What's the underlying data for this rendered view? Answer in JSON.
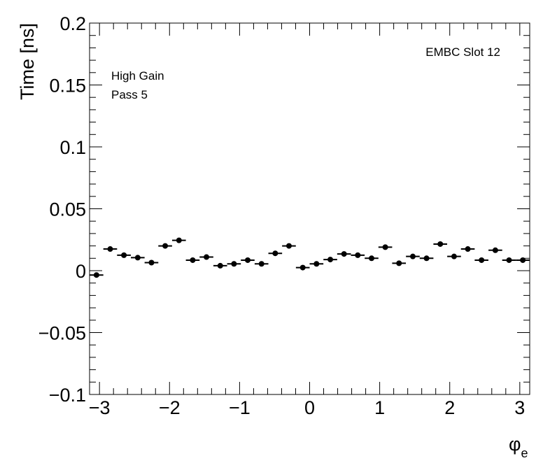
{
  "chart_data": {
    "type": "scatter",
    "title": "",
    "xlabel": "φ",
    "xlabel_subscript": "e",
    "ylabel": "Time [ns]",
    "xlim": [
      -3.1416,
      3.1416
    ],
    "ylim": [
      -0.1,
      0.2
    ],
    "x_ticks": [
      -3,
      -2,
      -1,
      0,
      1,
      2,
      3
    ],
    "x_tick_labels": [
      "−3",
      "−2",
      "−1",
      "0",
      "1",
      "2",
      "3"
    ],
    "y_ticks": [
      -0.1,
      -0.05,
      0,
      0.05,
      0.1,
      0.15,
      0.2
    ],
    "y_tick_labels": [
      "−0.1",
      "−0.05",
      "0",
      "0.05",
      "0.1",
      "0.15",
      "0.2"
    ],
    "grid": false,
    "annotations": {
      "gain": "High Gain",
      "pass": "Pass 5",
      "module": "EMBC Slot 12"
    },
    "series": [
      {
        "marker": "circle",
        "color": "#000000",
        "x": [
          -3.043,
          -2.847,
          -2.651,
          -2.454,
          -2.258,
          -2.062,
          -1.865,
          -1.669,
          -1.473,
          -1.276,
          -1.08,
          -0.884,
          -0.687,
          -0.491,
          -0.295,
          -0.098,
          0.098,
          0.295,
          0.491,
          0.687,
          0.884,
          1.08,
          1.276,
          1.473,
          1.669,
          1.865,
          2.062,
          2.258,
          2.454,
          2.651,
          2.847,
          3.043
        ],
        "xerr": 0.098,
        "y": [
          -0.0035,
          0.0175,
          0.0125,
          0.0105,
          0.0065,
          0.02,
          0.0245,
          0.0085,
          0.011,
          0.004,
          0.0055,
          0.0085,
          0.0055,
          0.014,
          0.02,
          0.0025,
          0.0055,
          0.009,
          0.0135,
          0.0125,
          0.01,
          0.019,
          0.006,
          0.0115,
          0.01,
          0.0215,
          0.0115,
          0.0175,
          0.0085,
          0.0165,
          0.0085,
          0.0085
        ]
      }
    ]
  }
}
